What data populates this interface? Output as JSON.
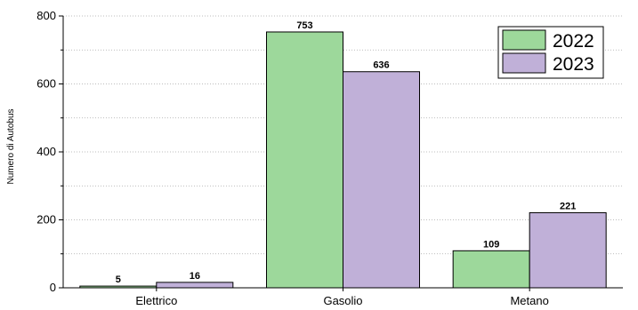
{
  "chart_data": {
    "type": "bar",
    "title": "",
    "xlabel": "",
    "ylabel": "Numero di Autobus",
    "ylim": [
      0,
      800
    ],
    "yticks": [
      0,
      200,
      400,
      600,
      800
    ],
    "grid": "horizontal dotted",
    "legend_position": "top-right",
    "categories": [
      "Elettrico",
      "Gasolio",
      "Metano"
    ],
    "series": [
      {
        "name": "2022",
        "color": "#9dd89b",
        "values": [
          5,
          753,
          109
        ]
      },
      {
        "name": "2023",
        "color": "#c0b0d8",
        "values": [
          16,
          636,
          221
        ]
      }
    ]
  }
}
